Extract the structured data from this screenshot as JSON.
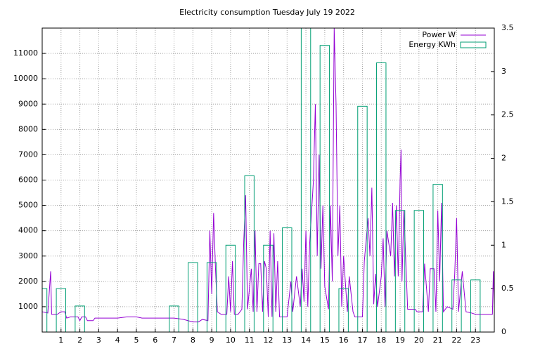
{
  "chart_data": {
    "type": "line-boxes",
    "title": "Electricity consumption Tuesday July 19 2022",
    "xlim": [
      0,
      24
    ],
    "xticks": [
      1,
      2,
      3,
      4,
      5,
      6,
      7,
      8,
      9,
      10,
      11,
      12,
      13,
      14,
      15,
      16,
      17,
      18,
      19,
      20,
      21,
      22,
      23
    ],
    "ylim": [
      0,
      12000
    ],
    "yticks": [
      1000,
      2000,
      3000,
      4000,
      5000,
      6000,
      7000,
      8000,
      9000,
      10000,
      11000
    ],
    "y2lim": [
      0,
      3.5
    ],
    "y2ticks": [
      0,
      0.5,
      1,
      1.5,
      2,
      2.5,
      3,
      3.5
    ],
    "grid": true,
    "legend": "top-right",
    "box_width": 0.5,
    "series": [
      {
        "name": "Power W",
        "color": "#9400d3",
        "kind": "line",
        "x": [
          0,
          0.3,
          0.45,
          0.5,
          0.8,
          1.0,
          1.2,
          1.3,
          1.5,
          1.9,
          2.0,
          2.1,
          2.3,
          2.4,
          2.7,
          2.8,
          3.5,
          4.0,
          4.5,
          5.0,
          5.3,
          6,
          7,
          7.5,
          8,
          8.3,
          8.5,
          8.8,
          8.9,
          9.0,
          9.1,
          9.2,
          9.3,
          9.5,
          9.8,
          9.9,
          10.0,
          10.1,
          10.2,
          10.4,
          10.6,
          10.7,
          10.8,
          10.9,
          11.1,
          11.2,
          11.3,
          11.4,
          11.5,
          11.6,
          11.7,
          11.8,
          11.9,
          12.0,
          12.1,
          12.2,
          12.3,
          12.4,
          12.5,
          12.6,
          12.8,
          13.0,
          13.2,
          13.3,
          13.5,
          13.7,
          13.8,
          13.9,
          14.0,
          14.1,
          14.2,
          14.4,
          14.5,
          14.6,
          14.7,
          14.8,
          14.9,
          15.0,
          15.2,
          15.3,
          15.4,
          15.5,
          15.6,
          15.7,
          15.8,
          15.9,
          16.0,
          16.2,
          16.3,
          16.5,
          16.6,
          16.7,
          17.0,
          17.1,
          17.3,
          17.4,
          17.5,
          17.6,
          17.7,
          17.8,
          18.0,
          18.1,
          18.2,
          18.3,
          18.5,
          18.6,
          18.7,
          18.8,
          18.9,
          19.0,
          19.05,
          19.1,
          19.2,
          19.4,
          19.8,
          19.9,
          20.2,
          20.3,
          20.5,
          20.6,
          20.8,
          20.9,
          21.0,
          21.1,
          21.2,
          21.3,
          21.5,
          21.8,
          21.9,
          22.0,
          22.1,
          22.3,
          22.5,
          22.8,
          23.0,
          23.5,
          23.9,
          23.95,
          24
        ],
        "values": [
          800,
          750,
          2400,
          700,
          700,
          800,
          800,
          550,
          600,
          600,
          450,
          600,
          600,
          450,
          450,
          550,
          550,
          550,
          600,
          600,
          550,
          550,
          550,
          500,
          400,
          400,
          500,
          450,
          4000,
          1500,
          4700,
          2500,
          800,
          700,
          700,
          2200,
          800,
          2800,
          700,
          700,
          900,
          3600,
          5400,
          900,
          2500,
          800,
          4000,
          800,
          2700,
          2700,
          800,
          2800,
          2500,
          600,
          4000,
          600,
          3900,
          800,
          2800,
          600,
          600,
          600,
          2000,
          800,
          2200,
          1000,
          2500,
          1200,
          4000,
          1000,
          3500,
          6000,
          9000,
          3000,
          7000,
          2500,
          5000,
          1800,
          900,
          5000,
          2000,
          12000,
          9000,
          3000,
          5000,
          1000,
          3000,
          800,
          2200,
          800,
          600,
          600,
          600,
          2800,
          4500,
          3000,
          5700,
          1100,
          2300,
          1000,
          2200,
          3700,
          1000,
          4000,
          3000,
          5100,
          2200,
          5000,
          2200,
          6000,
          7200,
          2000,
          4800,
          900,
          900,
          800,
          800,
          2700,
          800,
          2500,
          2500,
          800,
          4800,
          2000,
          5100,
          800,
          1000,
          900,
          2300,
          4500,
          800,
          2400,
          800,
          750,
          700,
          700,
          700,
          2400,
          1000
        ]
      },
      {
        "name": "Energy KWh",
        "color": "#009e73",
        "kind": "boxes",
        "axis": "y2",
        "x": [
          0,
          1,
          2,
          7,
          8,
          9,
          10,
          11,
          12,
          13,
          14,
          15,
          16,
          17,
          18,
          19,
          20,
          21,
          22,
          23
        ],
        "values": [
          0.5,
          0.5,
          0.3,
          0.3,
          0.8,
          0.8,
          1.0,
          1.8,
          1.0,
          1.2,
          3.7,
          3.3,
          0.5,
          2.6,
          3.1,
          1.4,
          1.4,
          1.7,
          0.6,
          0.6
        ]
      }
    ]
  }
}
